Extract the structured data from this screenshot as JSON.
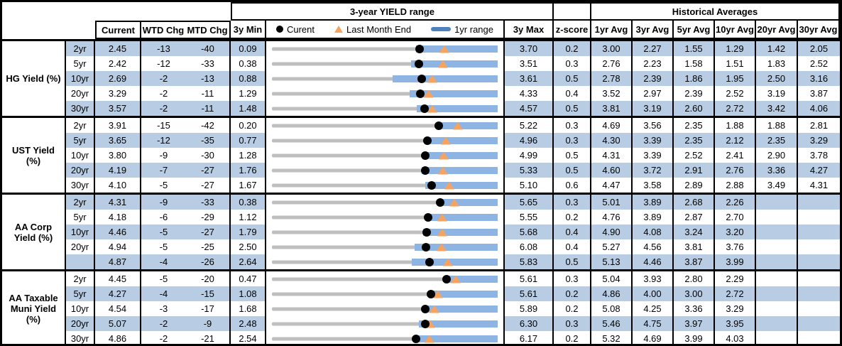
{
  "colors": {
    "row_stripe": "#b8cce4",
    "range_bar_blue": "#8eb4e3",
    "legend_bar_blue": "#4f81bd",
    "marker_orange": "#f6a35f",
    "track_gray": "#bfbfbf",
    "marker_black": "#000000"
  },
  "chart_data": {
    "type": "table",
    "description": "Yield summary table; each row embeds a 3-year range bullet chart: gray track = 3y min-max, blue bar = 1yr range, black dot = current yield, orange triangle = last month end (current minus MTD change in bp).",
    "headers": {
      "yield_range": "3-year YIELD range",
      "historical": "Historical Averages",
      "current": "Current",
      "wtd": "WTD Chg",
      "mtd": "MTD Chg",
      "min": "3y Min",
      "max": "3y Max",
      "z": "z-score",
      "avgs": [
        "1yr Avg",
        "3yr Avg",
        "5yr Avg",
        "10yr Avg",
        "20yr Avg",
        "30yr Avg"
      ]
    },
    "legend": {
      "current": "Curent",
      "last_month": "Last Month End",
      "range": "1yr range"
    },
    "groups": [
      {
        "label": "HG Yield (%)",
        "rows": [
          {
            "tenor": "2yr",
            "current": 2.45,
            "wtd_chg": -13,
            "mtd_chg": -40,
            "min_3y": 0.09,
            "max_3y": 3.7,
            "z_score": 0.2,
            "one_yr_min_est": 2.4,
            "avgs": [
              3.0,
              2.27,
              1.55,
              1.29,
              1.42,
              2.05
            ]
          },
          {
            "tenor": "5yr",
            "current": 2.42,
            "wtd_chg": -12,
            "mtd_chg": -33,
            "min_3y": 0.38,
            "max_3y": 3.51,
            "z_score": 0.3,
            "one_yr_min_est": 2.31,
            "avgs": [
              2.76,
              2.23,
              1.58,
              1.51,
              1.83,
              2.52
            ]
          },
          {
            "tenor": "10yr",
            "current": 2.69,
            "wtd_chg": -2,
            "mtd_chg": -13,
            "min_3y": 0.88,
            "max_3y": 3.61,
            "z_score": 0.5,
            "one_yr_min_est": 2.34,
            "avgs": [
              2.78,
              2.39,
              1.86,
              1.95,
              2.5,
              3.16
            ]
          },
          {
            "tenor": "20yr",
            "current": 3.29,
            "wtd_chg": -2,
            "mtd_chg": -11,
            "min_3y": 1.29,
            "max_3y": 4.33,
            "z_score": 0.4,
            "one_yr_min_est": 3.14,
            "avgs": [
              3.52,
              2.97,
              2.39,
              2.52,
              3.19,
              3.87
            ]
          },
          {
            "tenor": "30yr",
            "current": 3.57,
            "wtd_chg": -2,
            "mtd_chg": -11,
            "min_3y": 1.48,
            "max_3y": 4.57,
            "z_score": 0.5,
            "one_yr_min_est": 3.46,
            "avgs": [
              3.81,
              3.19,
              2.6,
              2.72,
              3.42,
              4.06
            ]
          }
        ]
      },
      {
        "label": "UST Yield (%)",
        "rows": [
          {
            "tenor": "2yr",
            "current": 3.91,
            "wtd_chg": -15,
            "mtd_chg": -42,
            "min_3y": 0.2,
            "max_3y": 5.22,
            "z_score": 0.3,
            "one_yr_min_est": 3.88,
            "avgs": [
              4.69,
              3.56,
              2.35,
              1.88,
              1.88,
              2.81
            ]
          },
          {
            "tenor": "5yr",
            "current": 3.65,
            "wtd_chg": -12,
            "mtd_chg": -35,
            "min_3y": 0.77,
            "max_3y": 4.96,
            "z_score": 0.3,
            "one_yr_min_est": 3.6,
            "avgs": [
              4.3,
              3.39,
              2.35,
              2.12,
              2.35,
              3.29
            ]
          },
          {
            "tenor": "10yr",
            "current": 3.8,
            "wtd_chg": -9,
            "mtd_chg": -30,
            "min_3y": 1.28,
            "max_3y": 4.99,
            "z_score": 0.5,
            "one_yr_min_est": 3.76,
            "avgs": [
              4.31,
              3.39,
              2.52,
              2.41,
              2.9,
              3.78
            ]
          },
          {
            "tenor": "20yr",
            "current": 4.19,
            "wtd_chg": -7,
            "mtd_chg": -27,
            "min_3y": 1.76,
            "max_3y": 5.33,
            "z_score": 0.5,
            "one_yr_min_est": 4.13,
            "avgs": [
              4.6,
              3.72,
              2.91,
              2.76,
              3.36,
              4.27
            ]
          },
          {
            "tenor": "30yr",
            "current": 4.1,
            "wtd_chg": -5,
            "mtd_chg": -27,
            "min_3y": 1.67,
            "max_3y": 5.1,
            "z_score": 0.6,
            "one_yr_min_est": 4.0,
            "avgs": [
              4.47,
              3.58,
              2.89,
              2.88,
              3.49,
              4.31
            ]
          }
        ]
      },
      {
        "label": "AA Corp Yield (%)",
        "rows": [
          {
            "tenor": "2yr",
            "current": 4.31,
            "wtd_chg": -9,
            "mtd_chg": -33,
            "min_3y": 0.38,
            "max_3y": 5.65,
            "z_score": 0.3,
            "one_yr_min_est": 4.31,
            "avgs": [
              5.01,
              3.89,
              2.68,
              2.26,
              null,
              null
            ]
          },
          {
            "tenor": "5yr",
            "current": 4.18,
            "wtd_chg": -6,
            "mtd_chg": -29,
            "min_3y": 1.12,
            "max_3y": 5.55,
            "z_score": 0.2,
            "one_yr_min_est": 4.13,
            "avgs": [
              4.76,
              3.89,
              2.87,
              2.7,
              null,
              null
            ]
          },
          {
            "tenor": "10yr",
            "current": 4.46,
            "wtd_chg": -5,
            "mtd_chg": -27,
            "min_3y": 1.79,
            "max_3y": 5.68,
            "z_score": 0.4,
            "one_yr_min_est": 4.39,
            "avgs": [
              4.9,
              4.08,
              3.24,
              3.2,
              null,
              null
            ]
          },
          {
            "tenor": "20yr",
            "current": 4.94,
            "wtd_chg": -5,
            "mtd_chg": -25,
            "min_3y": 2.5,
            "max_3y": 6.08,
            "z_score": 0.4,
            "one_yr_min_est": 4.76,
            "avgs": [
              5.27,
              4.56,
              3.81,
              3.76,
              null,
              null
            ]
          },
          {
            "tenor": "",
            "current": 4.87,
            "wtd_chg": -4,
            "mtd_chg": -26,
            "min_3y": 2.64,
            "max_3y": 5.83,
            "z_score": 0.5,
            "one_yr_min_est": 4.62,
            "avgs": [
              5.13,
              4.46,
              3.87,
              3.99,
              null,
              null
            ]
          }
        ]
      },
      {
        "label": "AA Taxable Muni Yield (%)",
        "rows": [
          {
            "tenor": "2yr",
            "current": 4.45,
            "wtd_chg": -5,
            "mtd_chg": -20,
            "min_3y": 0.47,
            "max_3y": 5.61,
            "z_score": 0.3,
            "one_yr_min_est": 4.38,
            "avgs": [
              5.04,
              3.93,
              2.8,
              2.29,
              null,
              null
            ]
          },
          {
            "tenor": "5yr",
            "current": 4.27,
            "wtd_chg": -4,
            "mtd_chg": -15,
            "min_3y": 1.08,
            "max_3y": 5.61,
            "z_score": 0.2,
            "one_yr_min_est": 4.21,
            "avgs": [
              4.86,
              4.0,
              3.0,
              2.72,
              null,
              null
            ]
          },
          {
            "tenor": "10yr",
            "current": 4.54,
            "wtd_chg": -3,
            "mtd_chg": -17,
            "min_3y": 1.68,
            "max_3y": 5.89,
            "z_score": 0.2,
            "one_yr_min_est": 4.49,
            "avgs": [
              5.08,
              4.25,
              3.36,
              3.29,
              null,
              null
            ]
          },
          {
            "tenor": "20yr",
            "current": 5.07,
            "wtd_chg": -2,
            "mtd_chg": -9,
            "min_3y": 2.48,
            "max_3y": 6.3,
            "z_score": 0.3,
            "one_yr_min_est": 4.97,
            "avgs": [
              5.46,
              4.75,
              3.97,
              3.95,
              null,
              null
            ]
          },
          {
            "tenor": "30yr",
            "current": 4.86,
            "wtd_chg": -2,
            "mtd_chg": -21,
            "min_3y": 2.54,
            "max_3y": 6.17,
            "z_score": 0.2,
            "one_yr_min_est": 4.85,
            "avgs": [
              5.32,
              4.69,
              3.99,
              4.03,
              null,
              null
            ]
          }
        ]
      }
    ]
  }
}
